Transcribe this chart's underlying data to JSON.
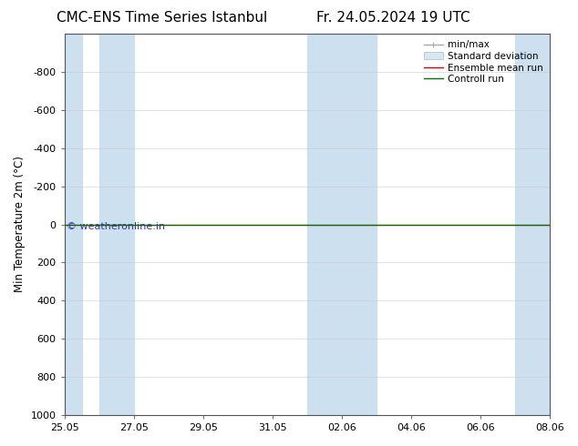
{
  "title_left": "CMC-ENS Time Series Istanbul",
  "title_right": "Fr. 24.05.2024 19 UTC",
  "ylabel": "Min Temperature 2m (°C)",
  "watermark": "© weatheronline.in",
  "ylim_bottom": 1000,
  "ylim_top": -1000,
  "yticks": [
    -800,
    -600,
    -400,
    -200,
    0,
    200,
    400,
    600,
    800,
    1000
  ],
  "x_tick_labels": [
    "25.05",
    "27.05",
    "29.05",
    "31.05",
    "02.06",
    "04.06",
    "06.06",
    "08.06"
  ],
  "x_tick_positions": [
    0,
    2,
    4,
    6,
    8,
    10,
    12,
    14
  ],
  "x_total": 14,
  "shaded_bands": [
    [
      0,
      0.5
    ],
    [
      1,
      2
    ],
    [
      7,
      9
    ],
    [
      13,
      14
    ]
  ],
  "control_run_y": 0,
  "ensemble_mean_y": 0,
  "minmax_color": "#a8a8a8",
  "stddev_color": "#d8e8f0",
  "stddev_edge_color": "#b8ccd8",
  "ensemble_color": "#dd0000",
  "control_color": "#007000",
  "band_color": "#cce0f0",
  "background_color": "#ffffff",
  "title_fontsize": 11,
  "label_fontsize": 8.5,
  "tick_fontsize": 8,
  "watermark_color": "#3333bb",
  "watermark_fontsize": 8
}
